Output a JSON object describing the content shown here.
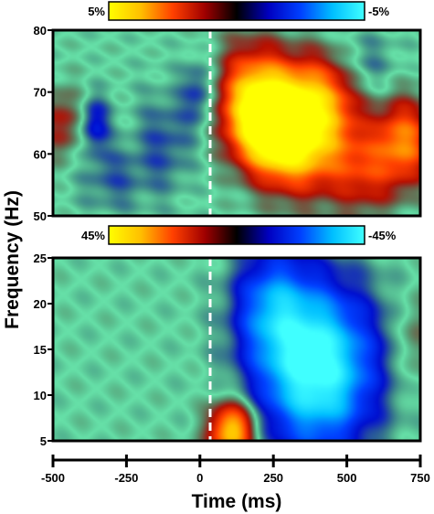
{
  "chart_data": [
    {
      "type": "heatmap",
      "panel": "top",
      "ylim": [
        50,
        80
      ],
      "yticks": [
        "50",
        "60",
        "70",
        "80"
      ],
      "xlim": [
        -500,
        750
      ],
      "event_marker_x": 0,
      "colorbar": {
        "left_label": "5%",
        "right_label": "-5%",
        "range": [
          5,
          -5
        ]
      },
      "blobs": [
        {
          "t": 250,
          "f": 65,
          "v": 5.0,
          "st": 90,
          "sf": 5
        },
        {
          "t": 350,
          "f": 62,
          "v": 3.6,
          "st": 110,
          "sf": 6
        },
        {
          "t": 180,
          "f": 70,
          "v": 2.8,
          "st": 90,
          "sf": 6
        },
        {
          "t": 430,
          "f": 70,
          "v": 2.4,
          "st": 90,
          "sf": 5
        },
        {
          "t": 700,
          "f": 62,
          "v": 3.0,
          "st": 70,
          "sf": 5
        },
        {
          "t": 560,
          "f": 57,
          "v": 1.8,
          "st": 80,
          "sf": 5
        },
        {
          "t": -470,
          "f": 65,
          "v": 1.5,
          "st": 50,
          "sf": 4
        },
        {
          "t": -360,
          "f": 65,
          "v": -1.8,
          "st": 35,
          "sf": 3
        },
        {
          "t": 0,
          "f": 70,
          "v": -1.4,
          "st": 40,
          "sf": 4
        },
        {
          "t": -120,
          "f": 62,
          "v": -1.0,
          "st": 70,
          "sf": 6
        },
        {
          "t": -300,
          "f": 56,
          "v": -0.9,
          "st": 80,
          "sf": 4
        },
        {
          "t": 560,
          "f": 74,
          "v": -1.0,
          "st": 80,
          "sf": 4
        }
      ]
    },
    {
      "type": "heatmap",
      "panel": "bottom",
      "ylim": [
        5,
        25
      ],
      "yticks": [
        "5",
        "10",
        "15",
        "20",
        "25"
      ],
      "xlim": [
        -500,
        750
      ],
      "event_marker_x": 0,
      "colorbar": {
        "left_label": "45%",
        "right_label": "-45%",
        "range": [
          45,
          -45
        ]
      },
      "blobs": [
        {
          "t": 400,
          "f": 13,
          "v": -48,
          "st": 140,
          "sf": 6.5
        },
        {
          "t": 240,
          "f": 20,
          "v": -22,
          "st": 90,
          "sf": 4.5
        },
        {
          "t": 110,
          "f": 6,
          "v": 40,
          "st": 55,
          "sf": 2.2
        },
        {
          "t": 730,
          "f": 16,
          "v": 9,
          "st": 40,
          "sf": 3.5
        }
      ]
    }
  ],
  "axes": {
    "ylabel": "Frequency (Hz)",
    "xlabel": "Time (ms)",
    "xticks": [
      "-500",
      "-250",
      "0",
      "250",
      "500",
      "750"
    ]
  },
  "colors": {
    "colormap": [
      "#ffff00",
      "#ffbf00",
      "#ff4000",
      "#a00000",
      "#000000",
      "#0000c0",
      "#0040ff",
      "#00bfff",
      "#40ffff"
    ],
    "heat_background": "#66e0a8",
    "marker": "#ffffff"
  }
}
